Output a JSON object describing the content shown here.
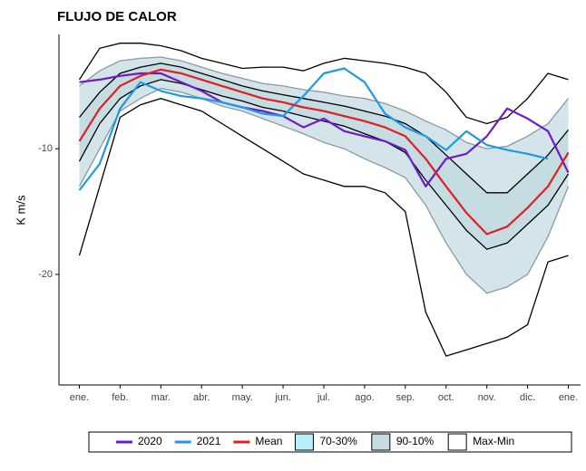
{
  "chart_data": {
    "type": "line",
    "title": "FLUJO DE CALOR",
    "ylabel": "K m/s",
    "x": [
      0,
      0.5,
      1,
      1.5,
      2,
      2.5,
      3,
      3.5,
      4,
      4.5,
      5,
      5.5,
      6,
      6.5,
      7,
      7.5,
      8,
      8.5,
      9,
      9.5,
      10,
      10.5,
      11,
      11.5,
      12
    ],
    "xlim": [
      -0.5,
      12.3
    ],
    "xticks": [
      {
        "value": 0,
        "label": "ene."
      },
      {
        "value": 1,
        "label": "feb."
      },
      {
        "value": 2,
        "label": "mar."
      },
      {
        "value": 3,
        "label": "abr."
      },
      {
        "value": 4,
        "label": "may."
      },
      {
        "value": 5,
        "label": "jun."
      },
      {
        "value": 6,
        "label": "jul."
      },
      {
        "value": 7,
        "label": "ago."
      },
      {
        "value": 8,
        "label": "sep."
      },
      {
        "value": 9,
        "label": "oct."
      },
      {
        "value": 10,
        "label": "nov."
      },
      {
        "value": 11,
        "label": "dic."
      },
      {
        "value": 12,
        "label": "ene."
      }
    ],
    "ylim": [
      -28.8,
      -0.9
    ],
    "yticks": [
      -20,
      -10
    ],
    "bands": [
      {
        "name": "70-30%",
        "color": "#b6f0f8",
        "fill": "#c4dce2",
        "edge": "#000000",
        "upper": [
          -7.5,
          -5.5,
          -4,
          -3.5,
          -3.2,
          -3.5,
          -4,
          -4.5,
          -5,
          -5.4,
          -5.7,
          -6,
          -6.3,
          -6.6,
          -7,
          -7.4,
          -8,
          -9,
          -10.5,
          -12,
          -13.5,
          -13.5,
          -12,
          -10.5,
          -8.5
        ],
        "lower": [
          -11,
          -8,
          -6,
          -5,
          -4.5,
          -4.8,
          -5.3,
          -5.8,
          -6.2,
          -6.7,
          -7,
          -7.4,
          -7.8,
          -8.2,
          -8.8,
          -9.4,
          -10.3,
          -12.5,
          -14.5,
          -16.5,
          -18,
          -17.5,
          -16,
          -14.5,
          -12
        ]
      },
      {
        "name": "90-10%",
        "color": "#c7dce1",
        "fill": "#d3e5ea",
        "edge": "#8a9a9e",
        "upper": [
          -5,
          -3.8,
          -3,
          -2.8,
          -2.7,
          -3,
          -3.5,
          -4,
          -4.4,
          -4.8,
          -5,
          -5.3,
          -5.5,
          -5.8,
          -6,
          -6.4,
          -7,
          -7.8,
          -8.5,
          -9.5,
          -10,
          -9.8,
          -9,
          -8,
          -6
        ],
        "lower": [
          -13,
          -10,
          -7,
          -6,
          -5.2,
          -5.5,
          -6,
          -6.6,
          -7,
          -7.6,
          -8.2,
          -8.8,
          -9.5,
          -10,
          -10.8,
          -11.5,
          -12.3,
          -14.5,
          -17.5,
          -20,
          -21.5,
          -21,
          -20,
          -17,
          -13
        ]
      },
      {
        "name": "Max-Min",
        "color": "#ffffff",
        "fill": "#ffffff",
        "edge": "#000000",
        "upper": [
          -4.5,
          -2,
          -1.6,
          -1.6,
          -1.8,
          -2.2,
          -2.8,
          -3.2,
          -3.6,
          -3.5,
          -3.5,
          -3.8,
          -3.2,
          -2.8,
          -3,
          -3.2,
          -3.5,
          -4,
          -5.5,
          -7.5,
          -8,
          -7.5,
          -6,
          -4,
          -4.5
        ],
        "lower": [
          -18.5,
          -13,
          -7.5,
          -6.5,
          -6,
          -6.5,
          -7,
          -8,
          -9,
          -10,
          -11,
          -12,
          -12.5,
          -13,
          -13,
          -13.5,
          -15,
          -23,
          -26.5,
          -26,
          -25.5,
          -25,
          -24,
          -19,
          -18.5
        ]
      }
    ],
    "series": [
      {
        "name": "2020",
        "color": "#7019c8",
        "values": [
          -4.7,
          -4.5,
          -4.2,
          -4,
          -4,
          -4.7,
          -5.4,
          -6.3,
          -6.7,
          -7,
          -7.4,
          -8.3,
          -7.6,
          -8.6,
          -9,
          -9.4,
          -10.1,
          -13,
          -10.8,
          -10.4,
          -9,
          -6.8,
          -7.6,
          -8.6,
          -11.9
        ]
      },
      {
        "name": "2021",
        "color": "#1e9be0",
        "values": [
          -13.3,
          -11.2,
          -6.8,
          -4.7,
          -5.4,
          -5.8,
          -6,
          -6.3,
          -6.7,
          -7.2,
          -7.4,
          -5.8,
          -4,
          -3.6,
          -4.7,
          -7.2,
          -8.3,
          -9,
          -10.1,
          -8.6,
          -9.7,
          -10.1,
          -10.4,
          -10.8,
          null
        ]
      },
      {
        "name": "Mean",
        "color": "#e02020",
        "values": [
          -9.4,
          -6.8,
          -5,
          -4.2,
          -3.7,
          -4,
          -4.5,
          -5,
          -5.5,
          -6,
          -6.3,
          -6.7,
          -7,
          -7.4,
          -7.8,
          -8.3,
          -9,
          -10.8,
          -13,
          -15.1,
          -16.8,
          -16.2,
          -14.7,
          -13,
          -10.3
        ]
      }
    ]
  }
}
